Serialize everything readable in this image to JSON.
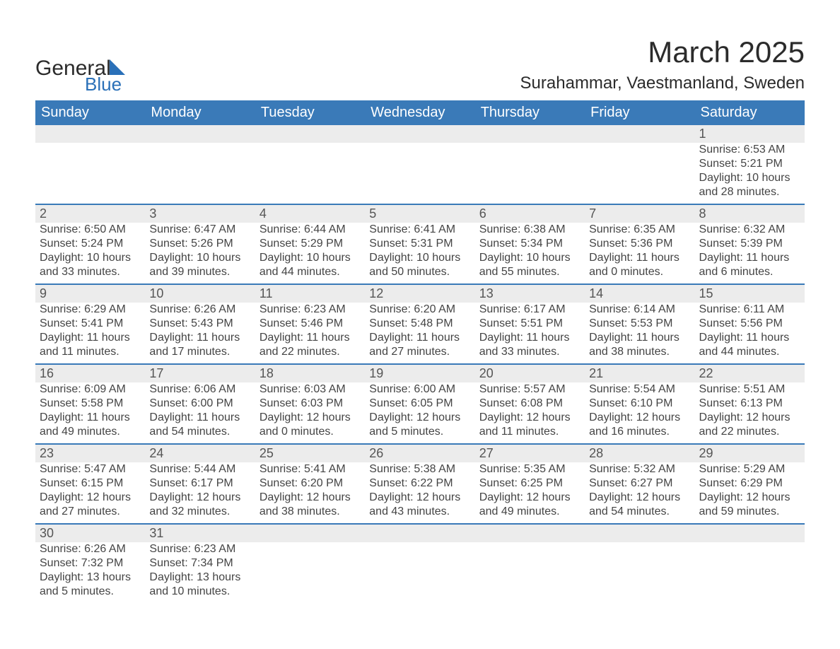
{
  "logo": {
    "text1": "General",
    "text2": "Blue"
  },
  "title": "March 2025",
  "location": "Surahammar, Vaestmanland, Sweden",
  "colors": {
    "header_bg": "#3a7ab8",
    "header_text": "#ffffff",
    "row_border": "#3a7ab8",
    "daynum_bg": "#ececec",
    "body_text": "#444444",
    "title_text": "#2b2b2b",
    "logo_accent": "#2a70b8"
  },
  "weekdays": [
    "Sunday",
    "Monday",
    "Tuesday",
    "Wednesday",
    "Thursday",
    "Friday",
    "Saturday"
  ],
  "weeks": [
    [
      null,
      null,
      null,
      null,
      null,
      null,
      {
        "n": "1",
        "sr": "Sunrise: 6:53 AM",
        "ss": "Sunset: 5:21 PM",
        "d1": "Daylight: 10 hours",
        "d2": "and 28 minutes."
      }
    ],
    [
      {
        "n": "2",
        "sr": "Sunrise: 6:50 AM",
        "ss": "Sunset: 5:24 PM",
        "d1": "Daylight: 10 hours",
        "d2": "and 33 minutes."
      },
      {
        "n": "3",
        "sr": "Sunrise: 6:47 AM",
        "ss": "Sunset: 5:26 PM",
        "d1": "Daylight: 10 hours",
        "d2": "and 39 minutes."
      },
      {
        "n": "4",
        "sr": "Sunrise: 6:44 AM",
        "ss": "Sunset: 5:29 PM",
        "d1": "Daylight: 10 hours",
        "d2": "and 44 minutes."
      },
      {
        "n": "5",
        "sr": "Sunrise: 6:41 AM",
        "ss": "Sunset: 5:31 PM",
        "d1": "Daylight: 10 hours",
        "d2": "and 50 minutes."
      },
      {
        "n": "6",
        "sr": "Sunrise: 6:38 AM",
        "ss": "Sunset: 5:34 PM",
        "d1": "Daylight: 10 hours",
        "d2": "and 55 minutes."
      },
      {
        "n": "7",
        "sr": "Sunrise: 6:35 AM",
        "ss": "Sunset: 5:36 PM",
        "d1": "Daylight: 11 hours",
        "d2": "and 0 minutes."
      },
      {
        "n": "8",
        "sr": "Sunrise: 6:32 AM",
        "ss": "Sunset: 5:39 PM",
        "d1": "Daylight: 11 hours",
        "d2": "and 6 minutes."
      }
    ],
    [
      {
        "n": "9",
        "sr": "Sunrise: 6:29 AM",
        "ss": "Sunset: 5:41 PM",
        "d1": "Daylight: 11 hours",
        "d2": "and 11 minutes."
      },
      {
        "n": "10",
        "sr": "Sunrise: 6:26 AM",
        "ss": "Sunset: 5:43 PM",
        "d1": "Daylight: 11 hours",
        "d2": "and 17 minutes."
      },
      {
        "n": "11",
        "sr": "Sunrise: 6:23 AM",
        "ss": "Sunset: 5:46 PM",
        "d1": "Daylight: 11 hours",
        "d2": "and 22 minutes."
      },
      {
        "n": "12",
        "sr": "Sunrise: 6:20 AM",
        "ss": "Sunset: 5:48 PM",
        "d1": "Daylight: 11 hours",
        "d2": "and 27 minutes."
      },
      {
        "n": "13",
        "sr": "Sunrise: 6:17 AM",
        "ss": "Sunset: 5:51 PM",
        "d1": "Daylight: 11 hours",
        "d2": "and 33 minutes."
      },
      {
        "n": "14",
        "sr": "Sunrise: 6:14 AM",
        "ss": "Sunset: 5:53 PM",
        "d1": "Daylight: 11 hours",
        "d2": "and 38 minutes."
      },
      {
        "n": "15",
        "sr": "Sunrise: 6:11 AM",
        "ss": "Sunset: 5:56 PM",
        "d1": "Daylight: 11 hours",
        "d2": "and 44 minutes."
      }
    ],
    [
      {
        "n": "16",
        "sr": "Sunrise: 6:09 AM",
        "ss": "Sunset: 5:58 PM",
        "d1": "Daylight: 11 hours",
        "d2": "and 49 minutes."
      },
      {
        "n": "17",
        "sr": "Sunrise: 6:06 AM",
        "ss": "Sunset: 6:00 PM",
        "d1": "Daylight: 11 hours",
        "d2": "and 54 minutes."
      },
      {
        "n": "18",
        "sr": "Sunrise: 6:03 AM",
        "ss": "Sunset: 6:03 PM",
        "d1": "Daylight: 12 hours",
        "d2": "and 0 minutes."
      },
      {
        "n": "19",
        "sr": "Sunrise: 6:00 AM",
        "ss": "Sunset: 6:05 PM",
        "d1": "Daylight: 12 hours",
        "d2": "and 5 minutes."
      },
      {
        "n": "20",
        "sr": "Sunrise: 5:57 AM",
        "ss": "Sunset: 6:08 PM",
        "d1": "Daylight: 12 hours",
        "d2": "and 11 minutes."
      },
      {
        "n": "21",
        "sr": "Sunrise: 5:54 AM",
        "ss": "Sunset: 6:10 PM",
        "d1": "Daylight: 12 hours",
        "d2": "and 16 minutes."
      },
      {
        "n": "22",
        "sr": "Sunrise: 5:51 AM",
        "ss": "Sunset: 6:13 PM",
        "d1": "Daylight: 12 hours",
        "d2": "and 22 minutes."
      }
    ],
    [
      {
        "n": "23",
        "sr": "Sunrise: 5:47 AM",
        "ss": "Sunset: 6:15 PM",
        "d1": "Daylight: 12 hours",
        "d2": "and 27 minutes."
      },
      {
        "n": "24",
        "sr": "Sunrise: 5:44 AM",
        "ss": "Sunset: 6:17 PM",
        "d1": "Daylight: 12 hours",
        "d2": "and 32 minutes."
      },
      {
        "n": "25",
        "sr": "Sunrise: 5:41 AM",
        "ss": "Sunset: 6:20 PM",
        "d1": "Daylight: 12 hours",
        "d2": "and 38 minutes."
      },
      {
        "n": "26",
        "sr": "Sunrise: 5:38 AM",
        "ss": "Sunset: 6:22 PM",
        "d1": "Daylight: 12 hours",
        "d2": "and 43 minutes."
      },
      {
        "n": "27",
        "sr": "Sunrise: 5:35 AM",
        "ss": "Sunset: 6:25 PM",
        "d1": "Daylight: 12 hours",
        "d2": "and 49 minutes."
      },
      {
        "n": "28",
        "sr": "Sunrise: 5:32 AM",
        "ss": "Sunset: 6:27 PM",
        "d1": "Daylight: 12 hours",
        "d2": "and 54 minutes."
      },
      {
        "n": "29",
        "sr": "Sunrise: 5:29 AM",
        "ss": "Sunset: 6:29 PM",
        "d1": "Daylight: 12 hours",
        "d2": "and 59 minutes."
      }
    ],
    [
      {
        "n": "30",
        "sr": "Sunrise: 6:26 AM",
        "ss": "Sunset: 7:32 PM",
        "d1": "Daylight: 13 hours",
        "d2": "and 5 minutes."
      },
      {
        "n": "31",
        "sr": "Sunrise: 6:23 AM",
        "ss": "Sunset: 7:34 PM",
        "d1": "Daylight: 13 hours",
        "d2": "and 10 minutes."
      },
      null,
      null,
      null,
      null,
      null
    ]
  ]
}
